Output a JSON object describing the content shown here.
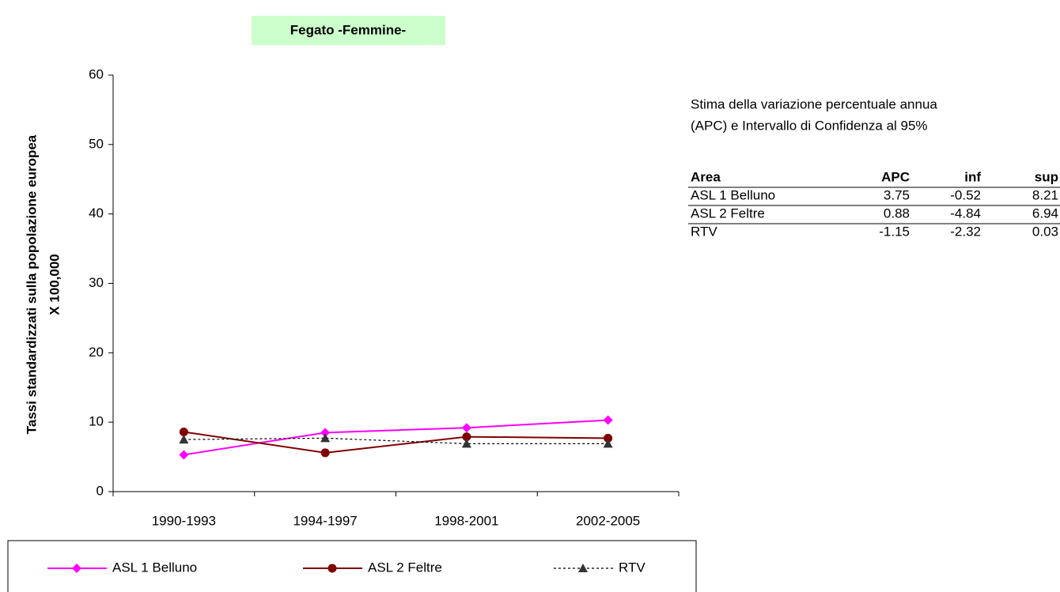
{
  "chart_data": {
    "type": "line",
    "title": "Fegato -Femmine-",
    "ylabel": [
      "Tassi standardizzati sulla popolazione europea",
      "X 100,000"
    ],
    "categories": [
      "1990-1993",
      "1994-1997",
      "1998-2001",
      "2002-2005"
    ],
    "series": [
      {
        "name": "ASL 1 Belluno",
        "color": "#ff00ff",
        "marker": "diamond",
        "dash": false,
        "values": [
          5.3,
          8.5,
          9.2,
          10.3
        ]
      },
      {
        "name": "ASL 2 Feltre",
        "color": "#800000",
        "marker": "circle",
        "dash": false,
        "values": [
          8.6,
          5.6,
          7.9,
          7.7
        ]
      },
      {
        "name": "RTV",
        "color": "#000000",
        "marker": "triangle",
        "dash": true,
        "values": [
          7.5,
          7.7,
          6.9,
          6.9
        ]
      }
    ],
    "ylim": [
      0,
      60
    ],
    "yticks": [
      0,
      10,
      20,
      30,
      40,
      50,
      60
    ],
    "grid": false,
    "legend": "bottom"
  },
  "apc_table": {
    "caption": [
      "Stima della variazione percentuale annua",
      "(APC) e Intervallo di Confidenza al 95%"
    ],
    "header": [
      "Area",
      "APC",
      "inf",
      "sup"
    ],
    "rows": [
      [
        "ASL 1 Belluno",
        3.75,
        -0.52,
        8.21
      ],
      [
        "ASL 2 Feltre",
        0.88,
        -4.84,
        6.94
      ],
      [
        "RTV",
        -1.15,
        -2.32,
        0.03
      ]
    ]
  }
}
